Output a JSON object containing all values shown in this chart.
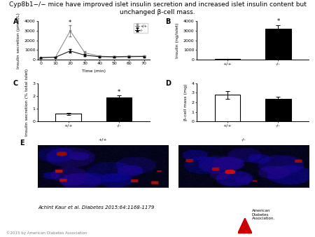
{
  "title_line1": "Cyp8b1−/− mice have improved islet insulin secretion and increased islet insulin content but",
  "title_line2": "unchanged β-cell mass.",
  "title_fontsize": 6.5,
  "citation": "Achint Kaur et al. Diabetes 2015;64:1168-1179",
  "copyright": "©2015 by American Diabetes Association",
  "panel_A": {
    "label": "A",
    "xlabel": "Time (min)",
    "ylabel": "Insulin secretion (pmol/L)",
    "legend": [
      "+/+",
      "-/-"
    ],
    "time_points": [
      0,
      10,
      20,
      30,
      40,
      50,
      60,
      70
    ],
    "wt_values": [
      200,
      250,
      3000,
      700,
      350,
      300,
      350,
      350
    ],
    "wt_err": [
      50,
      60,
      600,
      200,
      80,
      70,
      80,
      80
    ],
    "ko_values": [
      200,
      250,
      900,
      450,
      300,
      280,
      300,
      320
    ],
    "ko_err": [
      50,
      60,
      200,
      100,
      70,
      60,
      70,
      70
    ],
    "ylim": [
      0,
      4000
    ],
    "yticks": [
      0,
      1000,
      2000,
      3000,
      4000
    ]
  },
  "panel_B": {
    "label": "B",
    "ylabel": "Insulin (ng/islet)",
    "categories": [
      "+/+",
      "-/-"
    ],
    "values": [
      50,
      3200
    ],
    "errors": [
      20,
      400
    ],
    "colors": [
      "white",
      "black"
    ],
    "ylim": [
      0,
      4000
    ],
    "significance": "*"
  },
  "panel_C": {
    "label": "C",
    "ylabel": "Insulin secretion (% total islet)",
    "categories": [
      "+/+",
      "-/-"
    ],
    "values": [
      0.6,
      1.9
    ],
    "errors": [
      0.1,
      0.15
    ],
    "colors": [
      "white",
      "black"
    ],
    "ylim": [
      0,
      3
    ],
    "significance": "*"
  },
  "panel_D": {
    "label": "D",
    "ylabel": "β-cell mass (mg)",
    "categories": [
      "+/+",
      "-/-"
    ],
    "values": [
      2.8,
      2.4
    ],
    "errors": [
      0.4,
      0.2
    ],
    "colors": [
      "white",
      "black"
    ],
    "ylim": [
      0,
      4
    ]
  },
  "panel_E": {
    "label": "E",
    "sublabels": [
      "+/+",
      "-/-"
    ]
  },
  "bar_edgecolor": "black",
  "bar_linewidth": 0.8,
  "axes_linewidth": 0.7,
  "tick_fontsize": 4.5,
  "label_fontsize": 4.5,
  "panel_label_fontsize": 7
}
